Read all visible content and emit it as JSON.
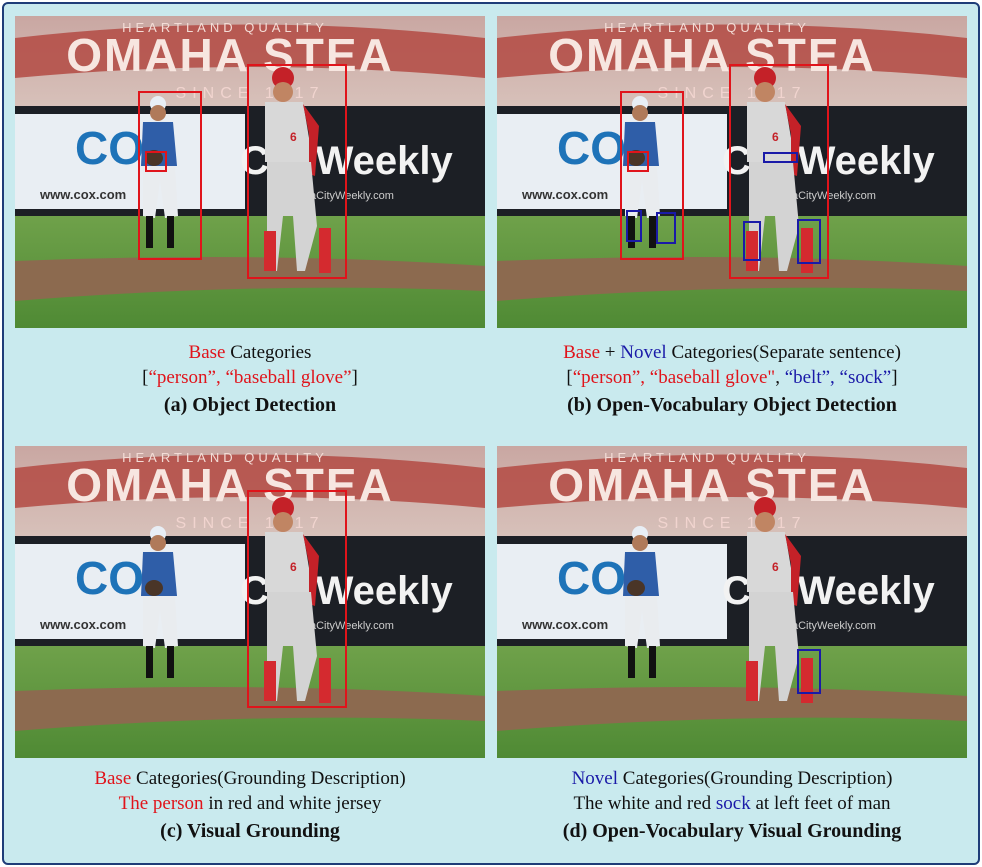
{
  "colors": {
    "frame_bg": "#c9eaee",
    "frame_border": "#1f3d78",
    "base": "#e0141b",
    "novel": "#1a1aa8"
  },
  "scene": {
    "banner_text": "OMAHA STEA",
    "banner_top": "HEARTLAND QUALITY",
    "banner_since": "SINCE 1917",
    "sign_cox": "COX",
    "sign_weekly": "CityWeekly",
    "sign_url": "www.cox.com",
    "sign_url2": "OmahaCityWeekly.com",
    "jersey_number": "6"
  },
  "panels": {
    "a": {
      "line1_base": "Base",
      "line1_rest": " Categories",
      "line2_open": "[",
      "line2_items": "“person”, “baseball glove”",
      "line2_close": "]",
      "title": "(a) Object Detection"
    },
    "b": {
      "line1_base": "Base",
      "line1_plus": " + ",
      "line1_novel": "Novel",
      "line1_rest": " Categories(Separate sentence)",
      "line2_open": "[",
      "line2_base_items": "“person”, “baseball glove\"",
      "line2_sep": ", ",
      "line2_novel_items": "“belt”, “sock”",
      "line2_close": "]",
      "title": "(b) Open-Vocabulary Object Detection"
    },
    "c": {
      "line1_base": "Base",
      "line1_rest": " Categories(Grounding Description)",
      "line2_red": "The person",
      "line2_rest": " in red and white jersey",
      "title": "(c) Visual Grounding"
    },
    "d": {
      "line1_novel": "Novel",
      "line1_rest": " Categories(Grounding Description)",
      "line2_pre": "The white and red ",
      "line2_novel": "sock",
      "line2_post": " at left feet of man",
      "title": "(d) Open-Vocabulary Visual Grounding"
    }
  }
}
